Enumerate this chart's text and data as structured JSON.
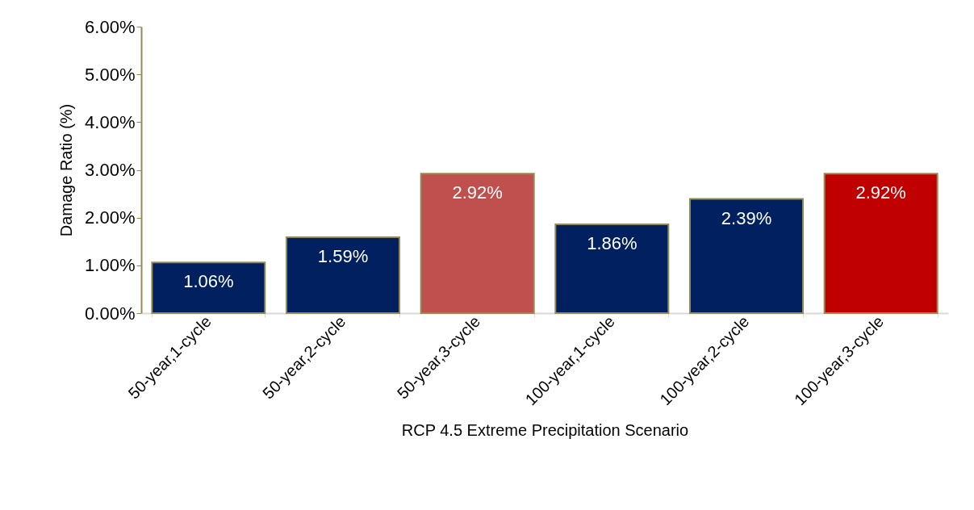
{
  "chart_data": {
    "type": "bar",
    "xlabel": "RCP 4.5 Extreme Precipitation Scenario",
    "ylabel": "Damage Ratio (%)",
    "categories": [
      "50-year,1-cycle",
      "50-year,2-cycle",
      "50-year,3-cycle",
      "100-year,1-cycle",
      "100-year,2-cycle",
      "100-year,3-cycle"
    ],
    "values": [
      1.06,
      1.59,
      2.92,
      1.86,
      2.39,
      2.92
    ],
    "colors": [
      "#002060",
      "#002060",
      "#c0504d",
      "#002060",
      "#002060",
      "#c00000"
    ],
    "value_labels": [
      "1.06%",
      "1.59%",
      "2.92%",
      "1.86%",
      "2.39%",
      "2.92%"
    ],
    "ylim": [
      0,
      6
    ],
    "yticks": [
      {
        "value": 0,
        "label": "0.00%"
      },
      {
        "value": 1,
        "label": "1.00%"
      },
      {
        "value": 2,
        "label": "2.00%"
      },
      {
        "value": 3,
        "label": "3.00%"
      },
      {
        "value": 4,
        "label": "4.00%"
      },
      {
        "value": 5,
        "label": "5.00%"
      },
      {
        "value": 6,
        "label": "6.00%"
      }
    ],
    "grid": false
  }
}
